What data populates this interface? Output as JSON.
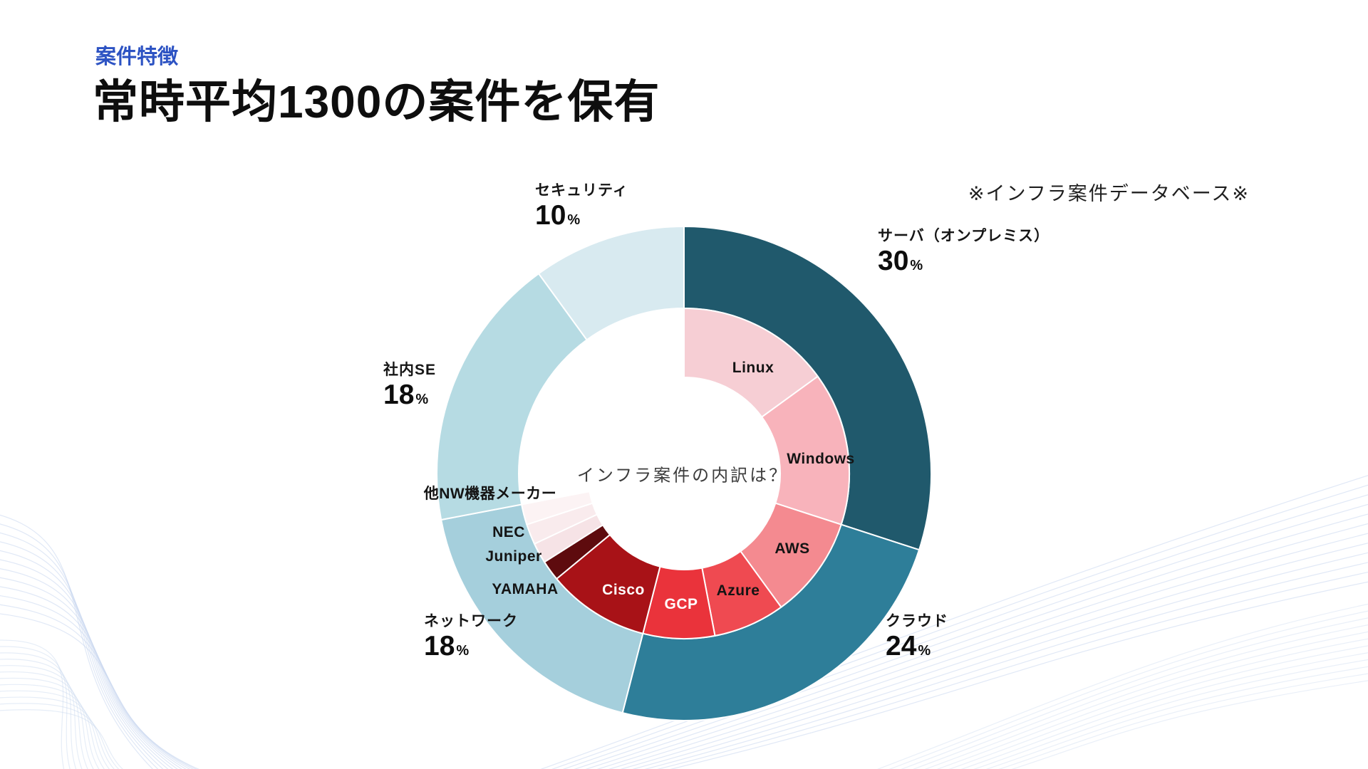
{
  "theme": {
    "accent": "#2d53c3",
    "background": "#ffffff",
    "decoration_line": "#c7d6ee"
  },
  "header": {
    "eyebrow": "案件特徴",
    "title": "常時平均1300の案件を保有",
    "note": "※インフラ案件データベース※"
  },
  "chart_data": {
    "type": "pie",
    "subtype": "nested-donut",
    "center_label": "インフラ案件の内訳は？",
    "unit": "%",
    "total": 100,
    "legend_position": "around-chart",
    "rings": [
      {
        "name": "outer-categories",
        "segments": [
          {
            "label": "サーバ（オンプレミス）",
            "value": 30,
            "color": "#20596c"
          },
          {
            "label": "クラウド",
            "value": 24,
            "color": "#2e7e99"
          },
          {
            "label": "ネットワーク",
            "value": 18,
            "color": "#a5cfdc"
          },
          {
            "label": "社内SE",
            "value": 18,
            "color": "#b6dbe3"
          },
          {
            "label": "セキュリティ",
            "value": 10,
            "color": "#d8eaf0"
          }
        ]
      },
      {
        "name": "inner-breakdown",
        "segments": [
          {
            "label": "Linux",
            "value": 15,
            "color": "#f6ced4"
          },
          {
            "label": "Windows",
            "value": 15,
            "color": "#f8b3bb"
          },
          {
            "label": "AWS",
            "value": 10,
            "color": "#f48a90"
          },
          {
            "label": "Azure",
            "value": 7,
            "color": "#ef4a51"
          },
          {
            "label": "GCP",
            "value": 7,
            "color": "#ea333b"
          },
          {
            "label": "Cisco",
            "value": 10,
            "color": "#a81217"
          },
          {
            "label": "YAMAHA",
            "value": 2,
            "color": "#5e0b0e"
          },
          {
            "label": "Juniper",
            "value": 2,
            "color": "#f6e3e6"
          },
          {
            "label": "NEC",
            "value": 2,
            "color": "#f9ebed"
          },
          {
            "label": "他NW機器メーカー",
            "value": 2,
            "color": "#fcf3f4"
          }
        ]
      }
    ]
  }
}
